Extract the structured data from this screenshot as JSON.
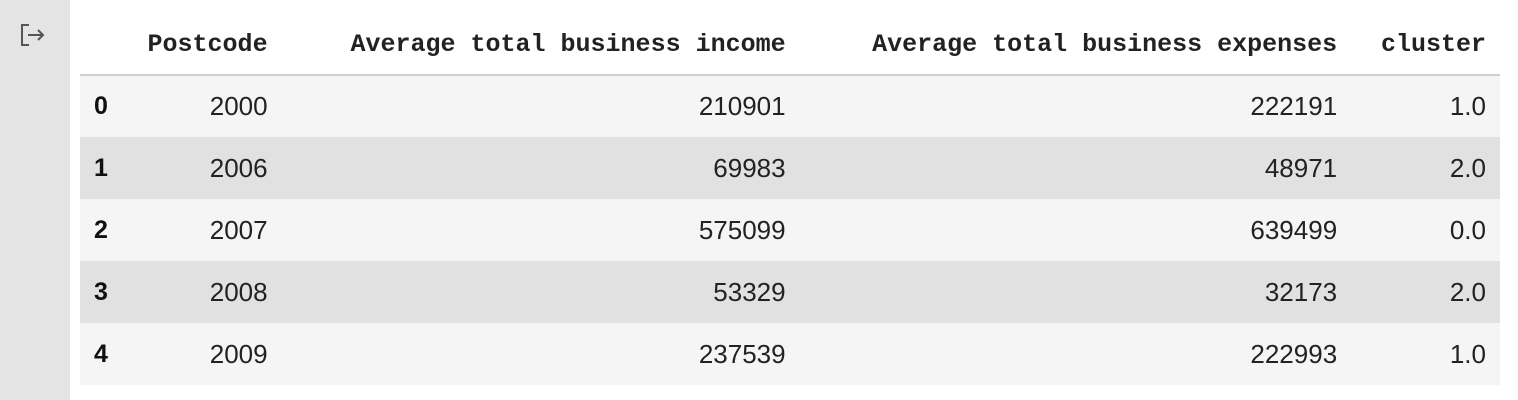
{
  "output": {
    "icon": "output-redirect-icon"
  },
  "table": {
    "index_header": "",
    "columns": [
      "Postcode",
      "Average total business income",
      "Average total business expenses",
      "cluster"
    ],
    "rows": [
      {
        "index": "0",
        "cells": [
          "2000",
          "210901",
          "222191",
          "1.0"
        ]
      },
      {
        "index": "1",
        "cells": [
          "2006",
          "69983",
          "48971",
          "2.0"
        ]
      },
      {
        "index": "2",
        "cells": [
          "2007",
          "575099",
          "639499",
          "0.0"
        ]
      },
      {
        "index": "3",
        "cells": [
          "2008",
          "53329",
          "32173",
          "2.0"
        ]
      },
      {
        "index": "4",
        "cells": [
          "2009",
          "237539",
          "222993",
          "1.0"
        ]
      }
    ]
  }
}
